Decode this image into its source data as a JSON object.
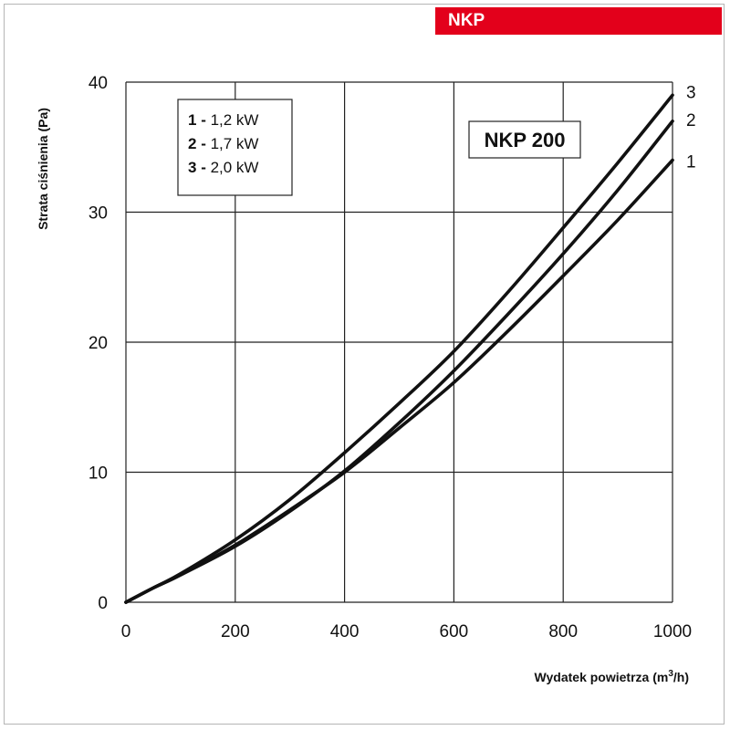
{
  "header": {
    "brand_label": "NKP"
  },
  "colors": {
    "brand": "#e3001b",
    "grid": "#222222",
    "line": "#111111"
  },
  "chart_data": {
    "type": "line",
    "title": "NKP 200",
    "xlabel": "Wydatek powietrza (m³/h)",
    "ylabel": "Strata ciśnienia (Pa)",
    "xlim": [
      0,
      1000
    ],
    "ylim": [
      0,
      40
    ],
    "xticks": [
      0,
      200,
      400,
      600,
      800,
      1000
    ],
    "yticks": [
      0,
      10,
      20,
      30,
      40
    ],
    "grid": true,
    "legend_position": "top-left",
    "series": [
      {
        "name": "1",
        "legend": {
          "num": "1",
          "sep": " - ",
          "label": "1,2 kW"
        },
        "x": [
          0,
          50,
          100,
          200,
          300,
          400,
          500,
          600,
          700,
          800,
          900,
          1000
        ],
        "y": [
          0,
          1.1,
          2.1,
          4.4,
          7.1,
          10.0,
          13.4,
          16.9,
          20.9,
          25.1,
          29.4,
          34.0
        ]
      },
      {
        "name": "2",
        "legend": {
          "num": "2",
          "sep": " - ",
          "label": "1,7 kW"
        },
        "x": [
          0,
          50,
          100,
          200,
          300,
          400,
          500,
          600,
          700,
          800,
          900,
          1000
        ],
        "y": [
          0,
          1.1,
          2.1,
          4.3,
          7.0,
          10.1,
          13.8,
          17.8,
          22.2,
          26.8,
          31.7,
          37.0
        ]
      },
      {
        "name": "3",
        "legend": {
          "num": "3",
          "sep": " - ",
          "label": "2,0 kW"
        },
        "x": [
          0,
          50,
          100,
          200,
          300,
          400,
          500,
          600,
          700,
          800,
          900,
          1000
        ],
        "y": [
          0,
          1.1,
          2.2,
          4.8,
          7.9,
          11.5,
          15.3,
          19.3,
          23.9,
          28.8,
          33.8,
          39.0
        ]
      }
    ]
  }
}
